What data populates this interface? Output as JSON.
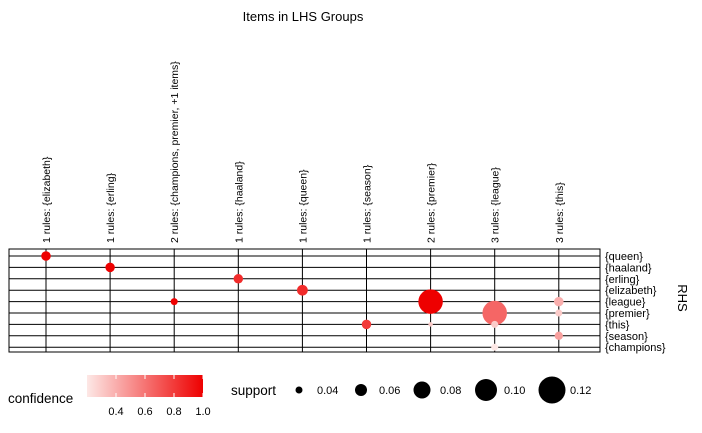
{
  "chart_data": {
    "type": "scatter",
    "title": "Items in LHS Groups",
    "x_axis": {
      "position": "top",
      "categories": [
        "1 rules: {elizabeth}",
        "1 rules: {erling}",
        "2 rules: {champions, premier, +1 items}",
        "1 rules: {haaland}",
        "1 rules: {queen}",
        "1 rules: {season}",
        "2 rules: {premier}",
        "3 rules: {league}",
        "3 rules: {this}"
      ]
    },
    "y_axis": {
      "title": "RHS",
      "position": "right",
      "categories": [
        "{queen}",
        "{haaland}",
        "{erling}",
        "{elizabeth}",
        "{league}",
        "{premier}",
        "{this}",
        "{season}",
        "{champions}"
      ]
    },
    "points": [
      {
        "lhs": "1 rules: {elizabeth}",
        "rhs": "{queen}",
        "support": 0.05,
        "confidence": 1.0
      },
      {
        "lhs": "1 rules: {erling}",
        "rhs": "{haaland}",
        "support": 0.05,
        "confidence": 1.0
      },
      {
        "lhs": "2 rules: {champions, premier, +1 items}",
        "rhs": "{league}",
        "support": 0.04,
        "confidence": 1.0
      },
      {
        "lhs": "1 rules: {haaland}",
        "rhs": "{erling}",
        "support": 0.05,
        "confidence": 0.85
      },
      {
        "lhs": "1 rules: {queen}",
        "rhs": "{elizabeth}",
        "support": 0.055,
        "confidence": 0.85
      },
      {
        "lhs": "1 rules: {season}",
        "rhs": "{this}",
        "support": 0.05,
        "confidence": 0.8
      },
      {
        "lhs": "2 rules: {premier}",
        "rhs": "{league}",
        "support": 0.11,
        "confidence": 1.0
      },
      {
        "lhs": "2 rules: {premier}",
        "rhs": "{this}",
        "support": 0.03,
        "confidence": 0.3
      },
      {
        "lhs": "3 rules: {league}",
        "rhs": "{premier}",
        "support": 0.11,
        "confidence": 0.65
      },
      {
        "lhs": "3 rules: {league}",
        "rhs": "{this}",
        "support": 0.04,
        "confidence": 0.3
      },
      {
        "lhs": "3 rules: {league}",
        "rhs": "{champions}",
        "support": 0.04,
        "confidence": 0.2
      },
      {
        "lhs": "3 rules: {this}",
        "rhs": "{league}",
        "support": 0.05,
        "confidence": 0.4
      },
      {
        "lhs": "3 rules: {this}",
        "rhs": "{premier}",
        "support": 0.04,
        "confidence": 0.3
      },
      {
        "lhs": "3 rules: {this}",
        "rhs": "{season}",
        "support": 0.045,
        "confidence": 0.45
      }
    ],
    "legend": {
      "confidence": {
        "title": "confidence",
        "ticks": [
          "0.4",
          "0.6",
          "0.8",
          "1.0"
        ],
        "range": [
          0.2,
          1.0
        ],
        "color_low": "#fde8e6",
        "color_high": "#ee0000"
      },
      "support": {
        "title": "support",
        "ticks": [
          "0.04",
          "0.06",
          "0.08",
          "0.10",
          "0.12"
        ],
        "values": [
          0.04,
          0.06,
          0.08,
          0.1,
          0.12
        ]
      }
    }
  }
}
